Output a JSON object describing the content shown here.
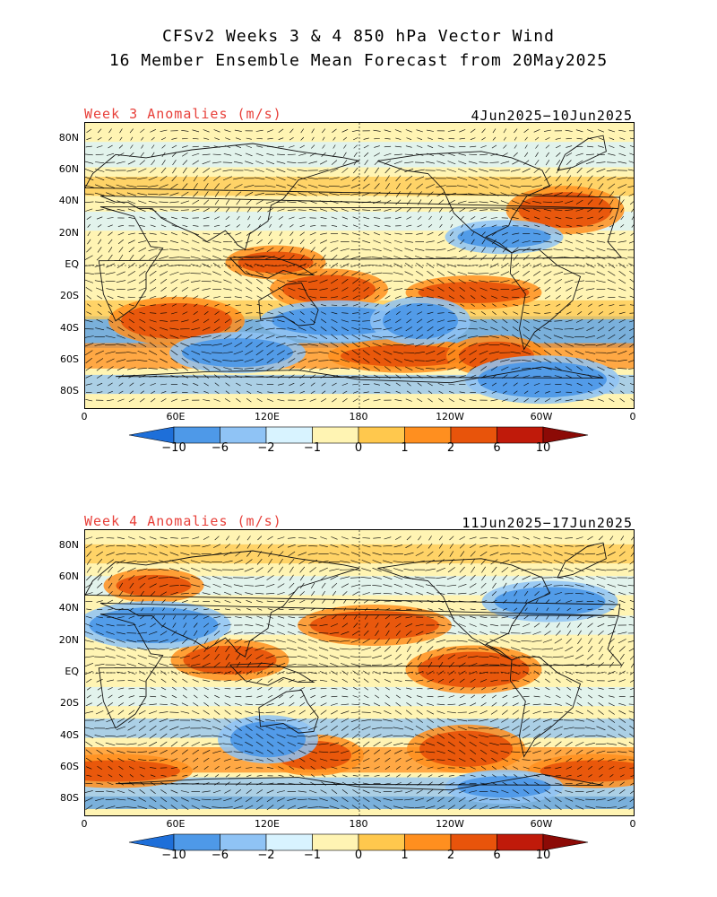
{
  "title": {
    "line1": "CFSv2 Weeks 3 & 4 850 hPa Vector Wind",
    "line2": "16 Member Ensemble Mean Forecast from 20May2025"
  },
  "panels": [
    {
      "label": "Week 3 Anomalies (m/s)",
      "dates": "4Jun2025−10Jun2025"
    },
    {
      "label": "Week 4 Anomalies (m/s)",
      "dates": "11Jun2025−17Jun2025"
    }
  ],
  "axes": {
    "lat_labels": [
      "80N",
      "60N",
      "40N",
      "20N",
      "EQ",
      "20S",
      "40S",
      "60S",
      "80S"
    ],
    "lon_labels": [
      "0",
      "60E",
      "120E",
      "180",
      "120W",
      "60W",
      "0"
    ]
  },
  "colorbar": {
    "labels": [
      "−10",
      "−6",
      "−2",
      "−1",
      "0",
      "1",
      "2",
      "6",
      "10"
    ],
    "colors": [
      "#1e6fd9",
      "#4e99e8",
      "#8fc3f5",
      "#d8f3ff",
      "#fff4b3",
      "#ffc84d",
      "#ff8f1f",
      "#e8540b",
      "#c01a0a",
      "#8c0a06"
    ]
  },
  "chart_data": {
    "type": "heatmap",
    "variable": "850 hPa vector wind anomaly",
    "units": "m/s",
    "bins": [
      -10,
      -6,
      -2,
      -1,
      0,
      1,
      2,
      6,
      10
    ],
    "panels": [
      {
        "name": "Week 3",
        "period": "4Jun2025-10Jun2025",
        "features": [
          {
            "lon": 125,
            "lat": 2,
            "sign": "+",
            "desc": "Maritime Continent"
          },
          {
            "lon": 160,
            "lat": -15,
            "sign": "+"
          },
          {
            "lon": 60,
            "lat": -35,
            "sign": "+"
          },
          {
            "lon": 210,
            "lat": -57,
            "sign": "+"
          },
          {
            "lon": 270,
            "lat": -57,
            "sign": "+"
          },
          {
            "lon": 315,
            "lat": 35,
            "sign": "+"
          },
          {
            "lon": 255,
            "lat": -17,
            "sign": "+"
          },
          {
            "lon": 165,
            "lat": -35,
            "sign": "-"
          },
          {
            "lon": 220,
            "lat": -35,
            "sign": "-"
          },
          {
            "lon": 275,
            "lat": 18,
            "sign": "-"
          },
          {
            "lon": 100,
            "lat": -55,
            "sign": "-"
          },
          {
            "lon": 300,
            "lat": -72,
            "sign": "-"
          }
        ]
      },
      {
        "name": "Week 4",
        "period": "11Jun2025-17Jun2025",
        "features": [
          {
            "lon": 45,
            "lat": 55,
            "sign": "+"
          },
          {
            "lon": 95,
            "lat": 8,
            "sign": "+"
          },
          {
            "lon": 255,
            "lat": 2,
            "sign": "+"
          },
          {
            "lon": 20,
            "lat": -62,
            "sign": "+"
          },
          {
            "lon": 150,
            "lat": -52,
            "sign": "+"
          },
          {
            "lon": 250,
            "lat": -48,
            "sign": "+"
          },
          {
            "lon": 335,
            "lat": -62,
            "sign": "+"
          },
          {
            "lon": 190,
            "lat": 30,
            "sign": "+"
          },
          {
            "lon": 120,
            "lat": -42,
            "sign": "-"
          },
          {
            "lon": 275,
            "lat": -72,
            "sign": "-"
          },
          {
            "lon": 305,
            "lat": 45,
            "sign": "-"
          },
          {
            "lon": 45,
            "lat": 30,
            "sign": "-"
          }
        ]
      }
    ]
  }
}
